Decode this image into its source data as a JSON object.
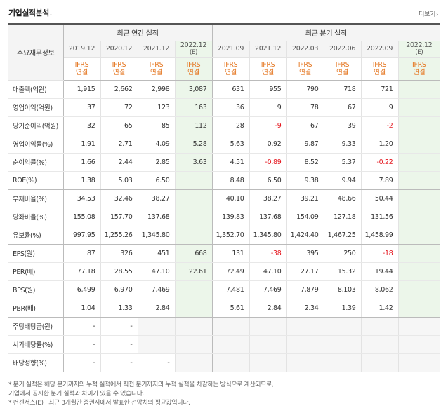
{
  "header": {
    "title": "기업실적분석",
    "more_label": "더보기"
  },
  "table": {
    "row_header_label": "주요재무정보",
    "groups": {
      "annual": "최근 연간 실적",
      "quarterly": "최근 분기 실적"
    },
    "periods": [
      "2019.12",
      "2020.12",
      "2021.12",
      "2022.12",
      "2021.09",
      "2021.12",
      "2022.03",
      "2022.06",
      "2022.09",
      "2022.12"
    ],
    "estimate_mark": "(E)",
    "basis": {
      "line1": "IFRS",
      "line2": "연결"
    },
    "rows": [
      {
        "label": "매출액(억원)",
        "values": [
          "1,915",
          "2,662",
          "2,998",
          "3,087",
          "631",
          "955",
          "790",
          "718",
          "721",
          ""
        ]
      },
      {
        "label": "영업이익(억원)",
        "values": [
          "37",
          "72",
          "123",
          "163",
          "36",
          "9",
          "78",
          "67",
          "9",
          ""
        ]
      },
      {
        "label": "당기순이익(억원)",
        "values": [
          "32",
          "65",
          "85",
          "112",
          "28",
          "-9",
          "67",
          "39",
          "-2",
          ""
        ]
      },
      {
        "label": "영업이익률(%)",
        "values": [
          "1.91",
          "2.71",
          "4.09",
          "5.28",
          "5.63",
          "0.92",
          "9.87",
          "9.33",
          "1.20",
          ""
        ]
      },
      {
        "label": "순이익률(%)",
        "values": [
          "1.66",
          "2.44",
          "2.85",
          "3.63",
          "4.51",
          "-0.89",
          "8.52",
          "5.37",
          "-0.22",
          ""
        ]
      },
      {
        "label": "ROE(%)",
        "values": [
          "1.38",
          "5.03",
          "6.50",
          "",
          "8.48",
          "6.50",
          "9.38",
          "9.94",
          "7.89",
          ""
        ]
      },
      {
        "label": "부채비율(%)",
        "values": [
          "34.53",
          "32.46",
          "38.27",
          "",
          "40.10",
          "38.27",
          "39.21",
          "48.66",
          "50.44",
          ""
        ]
      },
      {
        "label": "당좌비율(%)",
        "values": [
          "155.08",
          "157.70",
          "137.68",
          "",
          "139.83",
          "137.68",
          "154.09",
          "127.18",
          "131.56",
          ""
        ]
      },
      {
        "label": "유보율(%)",
        "values": [
          "997.95",
          "1,255.26",
          "1,345.80",
          "",
          "1,352.70",
          "1,345.80",
          "1,424.40",
          "1,467.25",
          "1,458.99",
          ""
        ]
      },
      {
        "label": "EPS(원)",
        "values": [
          "87",
          "326",
          "451",
          "668",
          "131",
          "-38",
          "395",
          "250",
          "-18",
          ""
        ]
      },
      {
        "label": "PER(배)",
        "values": [
          "77.18",
          "28.55",
          "47.10",
          "22.61",
          "72.49",
          "47.10",
          "27.17",
          "15.32",
          "19.44",
          ""
        ]
      },
      {
        "label": "BPS(원)",
        "values": [
          "6,499",
          "6,970",
          "7,469",
          "",
          "7,481",
          "7,469",
          "7,879",
          "8,103",
          "8,062",
          ""
        ]
      },
      {
        "label": "PBR(배)",
        "values": [
          "1.04",
          "1.33",
          "2.84",
          "",
          "5.61",
          "2.84",
          "2.34",
          "1.39",
          "1.42",
          ""
        ]
      },
      {
        "label": "주당배당금(원)",
        "values": [
          "-",
          "-",
          "",
          "",
          "",
          "",
          "",
          "",
          "",
          ""
        ]
      },
      {
        "label": "시가배당률(%)",
        "values": [
          "-",
          "-",
          "",
          "",
          "",
          "",
          "",
          "",
          "",
          ""
        ]
      },
      {
        "label": "배당성향(%)",
        "values": [
          "-",
          "-",
          "-",
          "",
          "",
          "",
          "",
          "",
          "",
          ""
        ]
      }
    ]
  },
  "notes": [
    "* 분기 실적은 해당 분기까지의 누적 실적에서 직전 분기까지의 누적 실적을 차감하는 방식으로 계산되므로,",
    "  기업에서 공시한 분기 실적과 차이가 있을 수 있습니다.",
    "* 컨센서스(E) : 최근 3개월간 증권사에서 발표한 전망치의 평균값입니다."
  ],
  "colors": {
    "estimate_bg": "#ecf6ea",
    "negative": "#e4131b",
    "basis_text": "#e57722",
    "header_bg": "#f4f4f4"
  }
}
